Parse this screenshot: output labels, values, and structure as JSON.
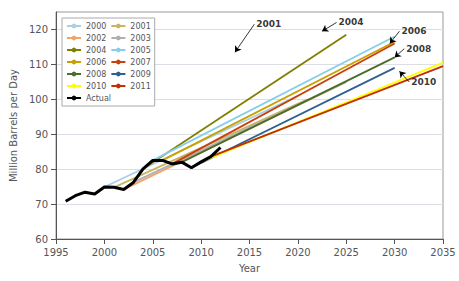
{
  "chart_data": {
    "type": "line",
    "xlabel": "Year",
    "ylabel": "Million Barrels per Day",
    "xlim": [
      1995,
      2035
    ],
    "ylim": [
      60,
      125
    ],
    "xticks": [
      1995,
      2000,
      2005,
      2010,
      2015,
      2020,
      2025,
      2030,
      2035
    ],
    "yticks": [
      60,
      70,
      80,
      90,
      100,
      110,
      120
    ],
    "grid": true,
    "legend": "upper left",
    "series": [
      {
        "name": "2000",
        "color": "#aacfe4",
        "x": [
          2000,
          2020
        ],
        "values": [
          74.9,
          101.0
        ]
      },
      {
        "name": "2001",
        "color": "#c8b560",
        "x": [
          2001,
          2021
        ],
        "values": [
          74.8,
          100.0
        ]
      },
      {
        "name": "2002",
        "color": "#f4a46a",
        "x": [
          2002,
          2025
        ],
        "values": [
          74.2,
          105.0
        ]
      },
      {
        "name": "2003",
        "color": "#b0b0b0",
        "x": [
          2003,
          2025
        ],
        "values": [
          76.2,
          105.0
        ]
      },
      {
        "name": "2004",
        "color": "#808000",
        "x": [
          2004,
          2025
        ],
        "values": [
          80.1,
          118.5
        ]
      },
      {
        "name": "2005",
        "color": "#87ceeb",
        "x": [
          2005,
          2030
        ],
        "values": [
          82.5,
          118.0
        ]
      },
      {
        "name": "2006",
        "color": "#c8a000",
        "x": [
          2006,
          2030
        ],
        "values": [
          82.5,
          116.5
        ]
      },
      {
        "name": "2007",
        "color": "#c84010",
        "x": [
          2007,
          2030
        ],
        "values": [
          81.5,
          116.0
        ]
      },
      {
        "name": "2008",
        "color": "#4a6e2a",
        "x": [
          2008,
          2030
        ],
        "values": [
          82.0,
          112.0
        ]
      },
      {
        "name": "2009",
        "color": "#2e6090",
        "x": [
          2009,
          2030
        ],
        "values": [
          80.4,
          109.0
        ]
      },
      {
        "name": "2010",
        "color": "#ffff00",
        "x": [
          2010,
          2035
        ],
        "values": [
          82.1,
          110.5
        ]
      },
      {
        "name": "2011",
        "color": "#c03000",
        "x": [
          2011,
          2035
        ],
        "values": [
          83.6,
          109.5
        ]
      },
      {
        "name": "Actual",
        "color": "#000000",
        "x": [
          1996,
          1997,
          1998,
          1999,
          2000,
          2001,
          2002,
          2003,
          2004,
          2005,
          2006,
          2007,
          2008,
          2009,
          2010,
          2011,
          2012
        ],
        "values": [
          70.8,
          72.4,
          73.4,
          72.9,
          74.9,
          74.8,
          74.2,
          76.2,
          80.1,
          82.5,
          82.5,
          81.5,
          82.0,
          80.4,
          82.1,
          83.6,
          86.2
        ]
      }
    ],
    "annotations": [
      {
        "text": "2001",
        "xy": [
          2013.5,
          113.5
        ],
        "xytext": [
          2015.5,
          121.5
        ]
      },
      {
        "text": "2004",
        "xy": [
          2022.5,
          119.5
        ],
        "xytext": [
          2024.0,
          122.0
        ]
      },
      {
        "text": "2006",
        "xy": [
          2029.5,
          116.0
        ],
        "xytext": [
          2030.5,
          119.5
        ]
      },
      {
        "text": "2008",
        "xy": [
          2030.0,
          112.0
        ],
        "xytext": [
          2031.0,
          114.5
        ]
      },
      {
        "text": "2010",
        "xy": [
          2030.5,
          108.0
        ],
        "xytext": [
          2031.5,
          105.0
        ]
      }
    ]
  }
}
